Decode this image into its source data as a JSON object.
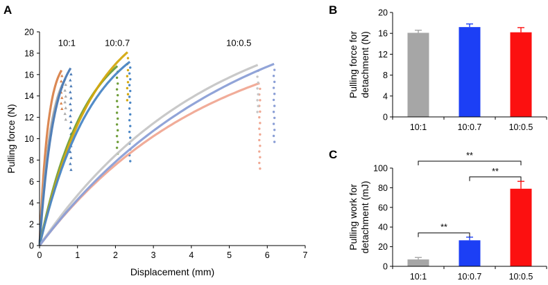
{
  "chart_data": [
    {
      "panel": "A",
      "type": "scatter",
      "title": "",
      "xlabel": "Displacement (mm)",
      "ylabel": "Pulling force (N)",
      "xlim": [
        0,
        7
      ],
      "ylim": [
        0,
        20
      ],
      "xticks": [
        0,
        1,
        2,
        3,
        4,
        5,
        6,
        7
      ],
      "yticks": [
        0,
        2,
        4,
        6,
        8,
        10,
        12,
        14,
        16,
        18,
        20
      ],
      "group_labels": [
        {
          "text": "10:1",
          "x": 0.72,
          "y": 19.0
        },
        {
          "text": "10:0.7",
          "x": 2.05,
          "y": 19.0
        },
        {
          "text": "10:0.5",
          "x": 5.25,
          "y": 19.0
        }
      ],
      "series": [
        {
          "name": "10:1 a",
          "group": "10:1",
          "color": "#d9824a",
          "marker": "triangle",
          "x_max": 0.58,
          "y_max": 16.4,
          "curve_k": 2.6,
          "drop_to": 12.8
        },
        {
          "name": "10:1 b",
          "group": "10:1",
          "color": "#a9a9a9",
          "marker": "triangle",
          "x_max": 0.68,
          "y_max": 15.6,
          "curve_k": 2.3,
          "drop_to": 11.8
        },
        {
          "name": "10:1 c",
          "group": "10:1",
          "color": "#4a7ab5",
          "marker": "triangle",
          "x_max": 0.82,
          "y_max": 16.6,
          "curve_k": 2.2,
          "drop_to": 7.1
        },
        {
          "name": "10:0.7 a",
          "group": "10:0.7",
          "color": "#6f9e3a",
          "marker": "circle",
          "x_max": 2.05,
          "y_max": 16.8,
          "curve_k": 1.7,
          "drop_to": 8.6
        },
        {
          "name": "10:0.7 b",
          "group": "10:0.7",
          "color": "#d4a90f",
          "marker": "circle",
          "x_max": 2.32,
          "y_max": 18.1,
          "curve_k": 1.6,
          "drop_to": 13.6
        },
        {
          "name": "10:0.7 c",
          "group": "10:0.7",
          "color": "#4a86c5",
          "marker": "circle",
          "x_max": 2.38,
          "y_max": 17.2,
          "curve_k": 1.7,
          "drop_to": 7.9
        },
        {
          "name": "10:0.5 a",
          "group": "10:0.5",
          "color": "#f0a893",
          "marker": "circle",
          "x_max": 5.8,
          "y_max": 15.2,
          "curve_k": 1.3,
          "drop_to": 7.2
        },
        {
          "name": "10:0.5 b",
          "group": "10:0.5",
          "color": "#c6c6c6",
          "marker": "circle",
          "x_max": 5.75,
          "y_max": 16.9,
          "curve_k": 1.3,
          "drop_to": 12.5
        },
        {
          "name": "10:0.5 c",
          "group": "10:0.5",
          "color": "#8b9fd6",
          "marker": "circle",
          "x_max": 6.18,
          "y_max": 17.0,
          "curve_k": 1.2,
          "drop_to": 9.7
        }
      ]
    },
    {
      "panel": "B",
      "type": "bar",
      "title": "",
      "xlabel": "",
      "ylabel": "Pulling force for detachment (N)",
      "ylabel_lines": [
        "Pulling force for",
        "detachment (N)"
      ],
      "categories": [
        "10:1",
        "10:0.7",
        "10:0.5"
      ],
      "values": [
        16.1,
        17.2,
        16.2
      ],
      "errors": [
        0.5,
        0.6,
        0.9
      ],
      "colors": [
        "#a6a6a6",
        "#1c3ff5",
        "#fc1010"
      ],
      "ylim": [
        0,
        20
      ],
      "yticks": [
        0,
        4,
        8,
        12,
        16,
        20
      ]
    },
    {
      "panel": "C",
      "type": "bar",
      "title": "",
      "xlabel": "",
      "ylabel": "Pulling work for detachment (mJ)",
      "ylabel_lines": [
        "Pulling work for",
        "detachment (mJ)"
      ],
      "categories": [
        "10:1",
        "10:0.7",
        "10:0.5"
      ],
      "values": [
        7.0,
        26.5,
        79.0
      ],
      "errors": [
        2.0,
        3.2,
        7.5
      ],
      "colors": [
        "#a6a6a6",
        "#1c3ff5",
        "#fc1010"
      ],
      "ylim": [
        0,
        100
      ],
      "yticks": [
        0,
        20,
        40,
        60,
        80,
        100
      ],
      "significance": [
        {
          "from": 0,
          "to": 1,
          "label": "**",
          "y": 34
        },
        {
          "from": 1,
          "to": 2,
          "label": "**",
          "y": 91
        },
        {
          "from": 0,
          "to": 2,
          "label": "**",
          "y": 107
        }
      ]
    }
  ]
}
